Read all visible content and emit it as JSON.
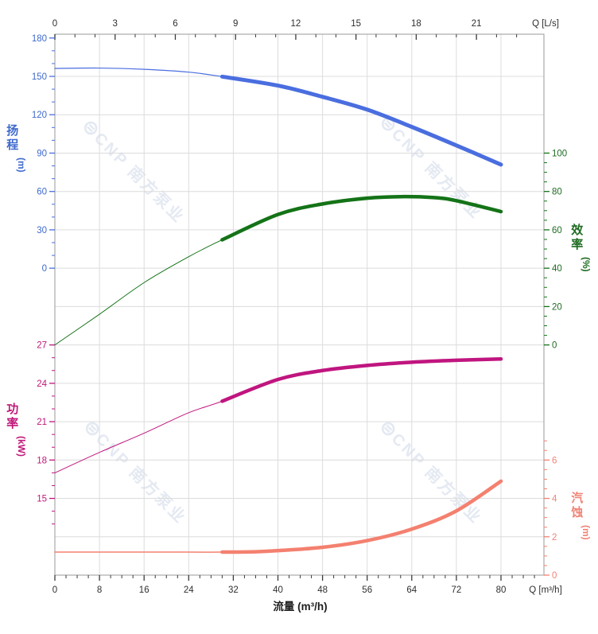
{
  "watermark": {
    "logo": "⊜",
    "text": "CNP 南方泵业",
    "color": "#e4e9f2"
  },
  "chart_data": {
    "type": "line",
    "title": "",
    "grid": true,
    "plot_border_color": "#a9a9a9",
    "gridline_color": "#dcdcdc",
    "x_axis_bottom": {
      "label": "流量 (m³/h)",
      "unit_label": "Q [m³/h]",
      "unit": "m³/h",
      "min": 0,
      "max": 87.7,
      "major_ticks": [
        0,
        8,
        16,
        24,
        32,
        40,
        48,
        56,
        64,
        72,
        80
      ],
      "minor_step": 2,
      "minor_max": 86,
      "text_color": "#2f2f2f",
      "tick_color": "#3a3a3a"
    },
    "x_axis_top": {
      "unit_label": "Q [L/s]",
      "unit": "L/s",
      "min": 0,
      "max": 24.4,
      "major_ticks": [
        0,
        3,
        6,
        9,
        12,
        15,
        18,
        21
      ],
      "minor_step": 1,
      "minor_max": 23,
      "m3h_per_unit": 3.6,
      "text_color": "#2f2f2f",
      "tick_color": "#3a3a3a"
    },
    "y_axes": [
      {
        "id": "head",
        "side": "left",
        "title": "扬程",
        "unit": "(m)",
        "color": "#4a6edf",
        "text_color": "#3f6acd",
        "major_ticks": [
          180,
          150,
          120,
          90,
          60,
          30,
          0
        ],
        "minor_step": 10,
        "range": [
          0,
          180
        ],
        "v_ref": 150,
        "grid_ref": 0,
        "v_per_grid": -30
      },
      {
        "id": "power",
        "side": "left",
        "title": "功率",
        "unit": "(kW)",
        "color": "#c0157f",
        "text_color": "#bf1879",
        "major_ticks": [
          27,
          24,
          21,
          18,
          15
        ],
        "minor_step": 1,
        "range": [
          13,
          27
        ],
        "v_ref": 27,
        "grid_ref": 7,
        "v_per_grid": -3
      },
      {
        "id": "eff",
        "side": "right",
        "title": "效率",
        "unit": "(%)",
        "color": "#147317",
        "text_color": "#1d6b21",
        "major_ticks": [
          100,
          80,
          60,
          40,
          20,
          0
        ],
        "minor_step": 5,
        "range": [
          0,
          100
        ],
        "v_ref": 100,
        "grid_ref": 2,
        "v_per_grid": -20
      },
      {
        "id": "npsh",
        "side": "right",
        "title": "汽蚀",
        "unit": "(m)",
        "color": "#f4806f",
        "text_color": "#ef8376",
        "major_ticks": [
          6,
          4,
          2,
          0
        ],
        "minor_step": 0.5,
        "range": [
          0,
          7
        ],
        "v_ref": 0,
        "grid_ref": 13,
        "v_per_grid": -2
      }
    ],
    "series": [
      {
        "id": "head",
        "name": "扬程 H-Q",
        "axis": "head",
        "color": "#4a6edf",
        "thin_width": 1.2,
        "thick_width": 5,
        "thick_from": 30,
        "points": [
          [
            0,
            156.2
          ],
          [
            8,
            156.5
          ],
          [
            16,
            155.5
          ],
          [
            24,
            153.3
          ],
          [
            30,
            149.8
          ],
          [
            40,
            142.8
          ],
          [
            48,
            134
          ],
          [
            56,
            124
          ],
          [
            64,
            110.5
          ],
          [
            72,
            96
          ],
          [
            80,
            81
          ]
        ]
      },
      {
        "id": "eff",
        "name": "效率",
        "axis": "eff",
        "color": "#147317",
        "thin_width": 1,
        "thick_width": 4.5,
        "thick_from": 30,
        "points": [
          [
            0,
            0
          ],
          [
            8,
            16
          ],
          [
            16,
            32.5
          ],
          [
            24,
            46
          ],
          [
            30,
            54.8
          ],
          [
            40,
            68
          ],
          [
            48,
            73.5
          ],
          [
            56,
            76.5
          ],
          [
            62,
            77.3
          ],
          [
            68,
            76.8
          ],
          [
            72,
            75.2
          ],
          [
            80,
            69.5
          ]
        ]
      },
      {
        "id": "power",
        "name": "功率",
        "axis": "power",
        "color": "#c0157f",
        "thin_width": 1,
        "thick_width": 4.5,
        "thick_from": 30,
        "points": [
          [
            0,
            17
          ],
          [
            8,
            18.6
          ],
          [
            16,
            20.1
          ],
          [
            24,
            21.7
          ],
          [
            30,
            22.6
          ],
          [
            40,
            24.3
          ],
          [
            48,
            25.0
          ],
          [
            56,
            25.4
          ],
          [
            64,
            25.65
          ],
          [
            72,
            25.8
          ],
          [
            80,
            25.9
          ]
        ]
      },
      {
        "id": "npsh",
        "name": "汽蚀",
        "axis": "npsh",
        "color": "#f4806f",
        "thin_width": 1.5,
        "thick_width": 4.5,
        "thick_from": 30,
        "points": [
          [
            0,
            1.2
          ],
          [
            16,
            1.2
          ],
          [
            24,
            1.2
          ],
          [
            30,
            1.2
          ],
          [
            36,
            1.22
          ],
          [
            40,
            1.28
          ],
          [
            48,
            1.45
          ],
          [
            56,
            1.8
          ],
          [
            64,
            2.4
          ],
          [
            72,
            3.35
          ],
          [
            80,
            4.9
          ]
        ]
      }
    ]
  }
}
